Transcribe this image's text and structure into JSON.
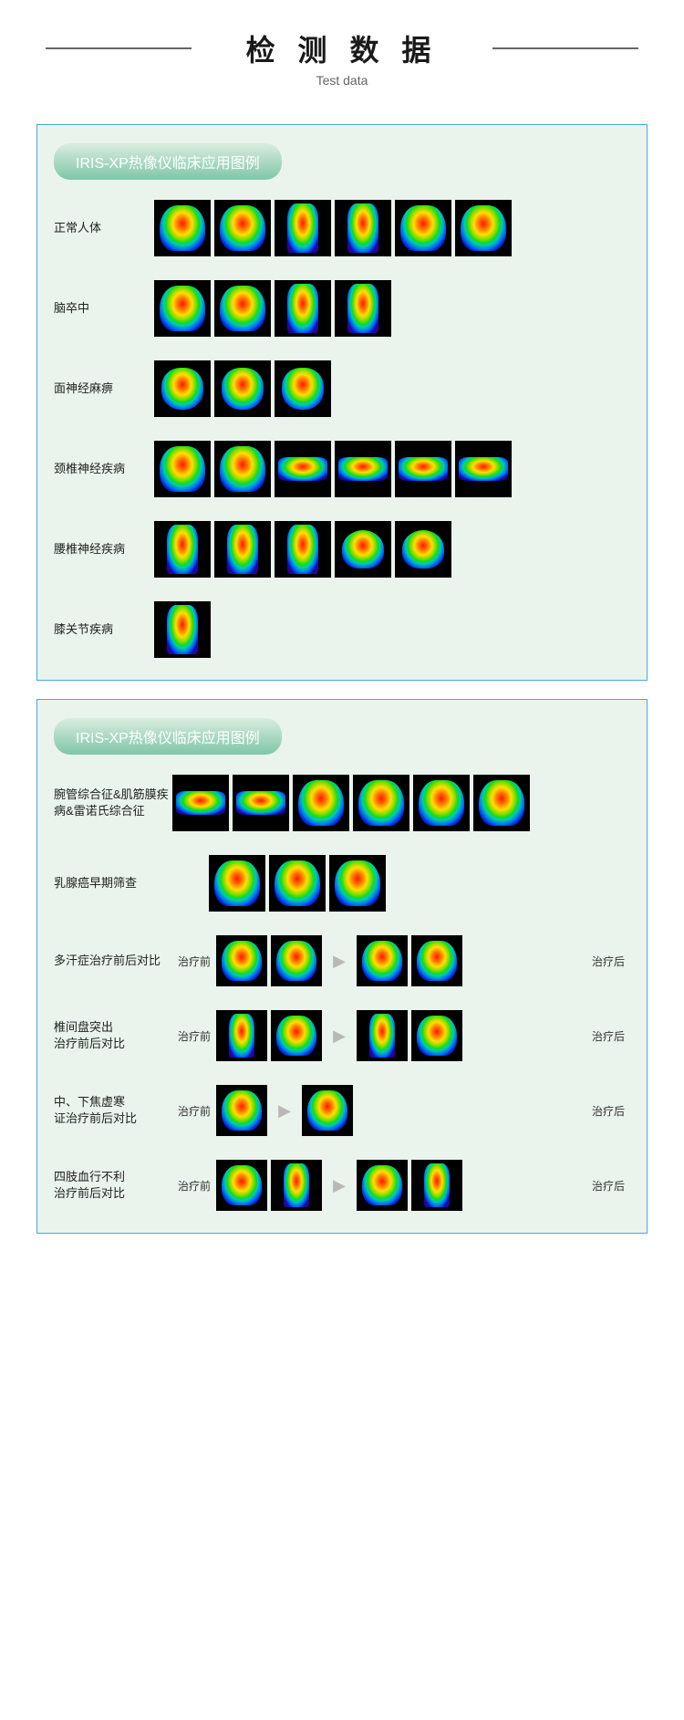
{
  "header": {
    "title": "检 测 数 据",
    "subtitle": "Test data"
  },
  "panels": [
    {
      "title": "IRIS-XP热像仪临床应用图例",
      "bg": "green",
      "rows": [
        {
          "label": "正常人体",
          "images": 6,
          "shapes": [
            "",
            "",
            "legs",
            "legs",
            "",
            ""
          ]
        },
        {
          "label": "脑卒中",
          "images": 4,
          "shapes": [
            "",
            "",
            "legs",
            "legs"
          ]
        },
        {
          "label": "面神经麻痹",
          "images": 3,
          "shapes": [
            "face",
            "face",
            "face"
          ]
        },
        {
          "label": "颈椎神经疾病",
          "images": 6,
          "shapes": [
            "",
            "",
            "arms",
            "arms",
            "arms",
            "arms"
          ]
        },
        {
          "label": "腰椎神经疾病",
          "images": 5,
          "shapes": [
            "legs",
            "legs",
            "legs",
            "feet",
            "feet"
          ]
        },
        {
          "label": "膝关节疾病",
          "images": 1,
          "shapes": [
            "legs"
          ]
        }
      ]
    },
    {
      "title": "IRIS-XP热像仪临床应用图例",
      "bg": "green",
      "rows": [
        {
          "label": "腕管综合征&肌筋膜疾病&雷诺氏综合征",
          "wide": true,
          "images": 6,
          "shapes": [
            "arms",
            "arms",
            "",
            "",
            "",
            ""
          ]
        },
        {
          "label": "乳腺癌早期筛查",
          "wide": true,
          "images": 3,
          "indent": true,
          "shapes": [
            "",
            "",
            ""
          ]
        },
        {
          "label": "多汗症治疗前后对比",
          "wide": true,
          "compare": true,
          "before": 2,
          "after": 2,
          "shapes_b": [
            "",
            ""
          ],
          "shapes_a": [
            "",
            ""
          ]
        },
        {
          "label": "椎间盘突出\n治疗前后对比",
          "wide": true,
          "compare": true,
          "before": 2,
          "after": 2,
          "shapes_b": [
            "legs",
            ""
          ],
          "shapes_a": [
            "legs",
            ""
          ]
        },
        {
          "label": "中、下焦虚寒\n证治疗前后对比",
          "wide": true,
          "compare": true,
          "before": 1,
          "after": 1,
          "shapes_b": [
            ""
          ],
          "shapes_a": [
            ""
          ]
        },
        {
          "label": "四肢血行不利\n治疗前后对比",
          "wide": true,
          "compare": true,
          "before": 2,
          "after": 2,
          "shapes_b": [
            "",
            "legs"
          ],
          "shapes_a": [
            "",
            "legs"
          ]
        }
      ]
    }
  ],
  "labels": {
    "before": "治疗前",
    "after": "治疗后"
  },
  "colors": {
    "border": "#4aa8d8",
    "panel_bg": "#eaf3ec",
    "pill_grad_top": "#d9ede0",
    "pill_grad_bottom": "#7fc6a8",
    "thermal_stops": [
      "#ff2a00",
      "#ff7b00",
      "#ffd400",
      "#7bd100",
      "#00c0a0",
      "#0060d0",
      "#2a007a"
    ]
  }
}
